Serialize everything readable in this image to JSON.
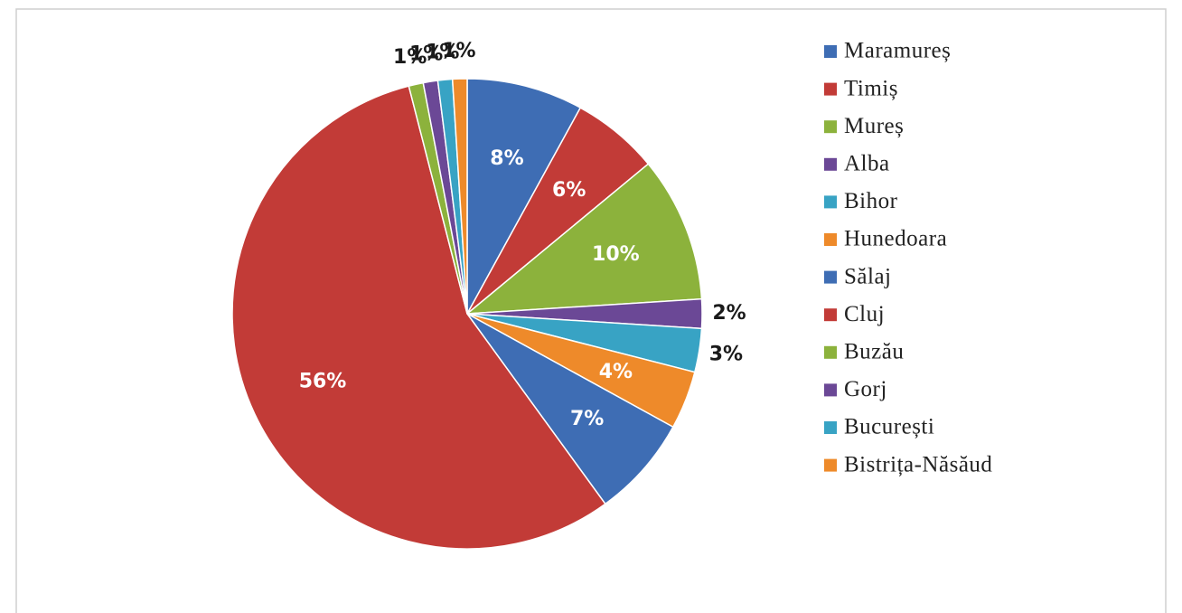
{
  "chart_data": {
    "type": "pie",
    "categories": [
      "Maramureș",
      "Timiș",
      "Mureș",
      "Alba",
      "Bihor",
      "Hunedoara",
      "Sălaj",
      "Cluj",
      "Buzău",
      "Gorj",
      "București",
      "Bistrița-Năsăud"
    ],
    "values": [
      8,
      6,
      10,
      2,
      3,
      4,
      7,
      56,
      1,
      1,
      1,
      1
    ],
    "value_labels": [
      "8%",
      "6%",
      "10%",
      "2%",
      "3%",
      "4%",
      "7%",
      "56%",
      "1%",
      "1%",
      "1%",
      "1%"
    ],
    "colors": [
      "#3e6db4",
      "#c23b37",
      "#8cb23c",
      "#6b4896",
      "#38a3c4",
      "#ee8a2a",
      "#3e6db4",
      "#c23b37",
      "#8cb23c",
      "#6b4896",
      "#38a3c4",
      "#ee8a2a"
    ],
    "legend": "right"
  }
}
